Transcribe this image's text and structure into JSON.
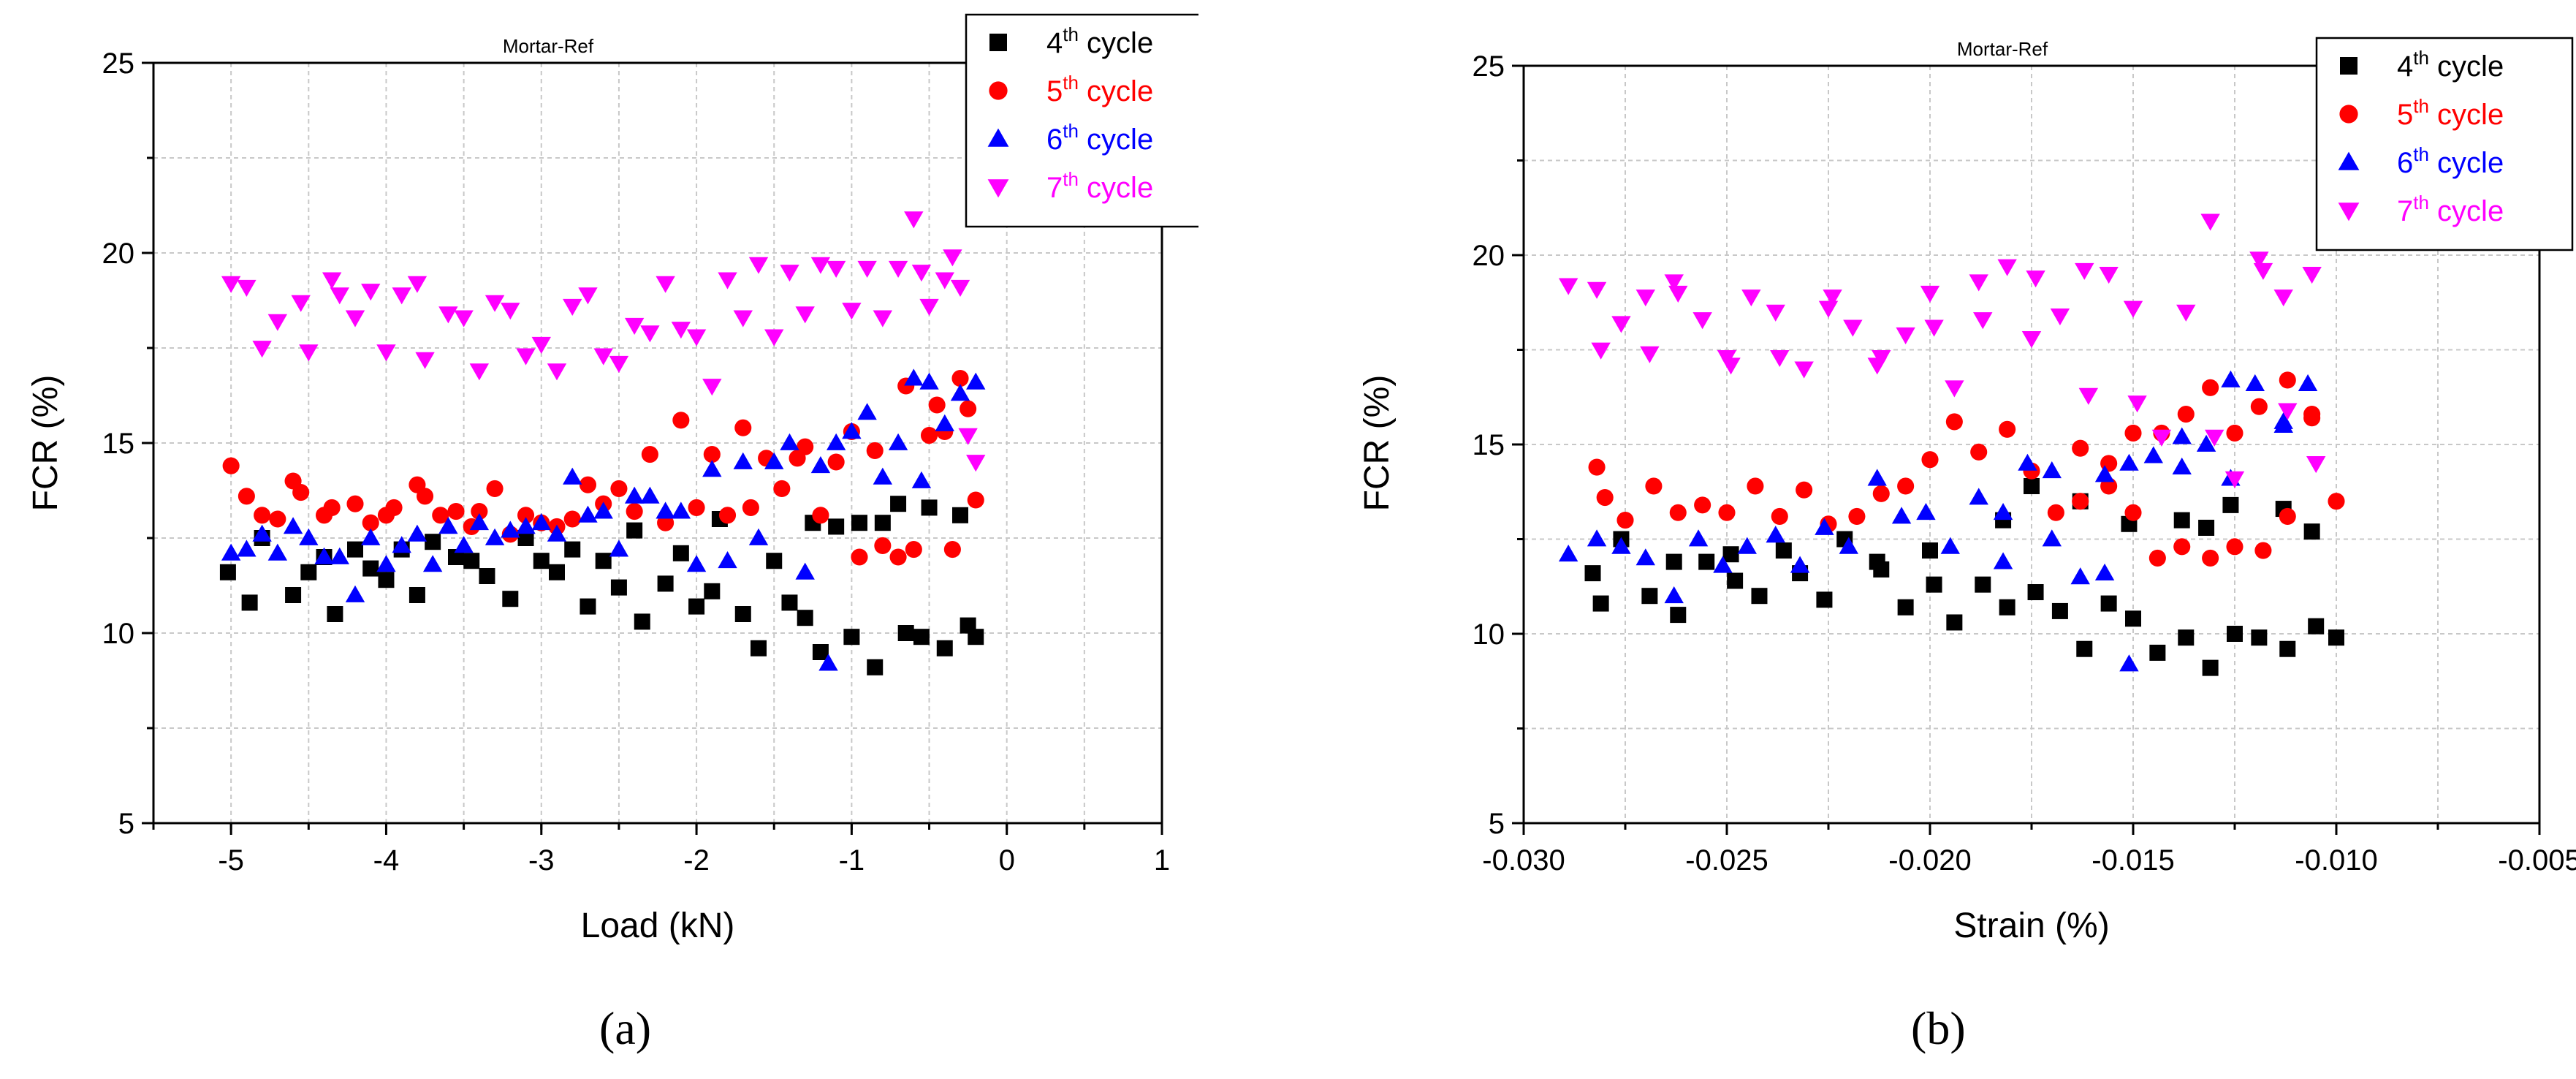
{
  "chart_data": [
    {
      "type": "scatter",
      "panel_label": "(a)",
      "title": "Mortar-Ref",
      "xlabel": "Load (kN)",
      "ylabel": "FCR (%)",
      "xlim": [
        -5.5,
        1
      ],
      "ylim": [
        5,
        25
      ],
      "xticks": [
        -5,
        -4,
        -3,
        -2,
        -1,
        0,
        1
      ],
      "xtick_labels": [
        "-5",
        "-4",
        "-3",
        "-2",
        "-1",
        "0",
        "1"
      ],
      "yticks": [
        5,
        10,
        15,
        20,
        25
      ],
      "ytick_labels": [
        "5",
        "10",
        "15",
        "20",
        "25"
      ],
      "legend_position": "top-right",
      "series": [
        {
          "name": "4th cycle",
          "name_base": "4",
          "name_sup": "th",
          "name_rest": " cycle",
          "marker": "square",
          "color": "#000000",
          "x": [
            -5.02,
            -4.88,
            -4.8,
            -4.6,
            -4.5,
            -4.4,
            -4.33,
            -4.2,
            -4.1,
            -4.0,
            -3.9,
            -3.8,
            -3.7,
            -3.55,
            -3.45,
            -3.35,
            -3.2,
            -3.1,
            -3.0,
            -2.9,
            -2.8,
            -2.7,
            -2.6,
            -2.5,
            -2.4,
            -2.35,
            -2.2,
            -2.1,
            -2.0,
            -1.9,
            -1.85,
            -1.7,
            -1.6,
            -1.5,
            -1.4,
            -1.3,
            -1.25,
            -1.2,
            -1.1,
            -1.0,
            -0.95,
            -0.85,
            -0.8,
            -0.7,
            -0.65,
            -0.55,
            -0.5,
            -0.4,
            -0.3,
            -0.25,
            -0.2
          ],
          "y": [
            11.6,
            10.8,
            12.5,
            11.0,
            11.6,
            12.0,
            10.5,
            12.2,
            11.7,
            11.4,
            12.2,
            11.0,
            12.4,
            12.0,
            11.9,
            11.5,
            10.9,
            12.5,
            11.9,
            11.6,
            12.2,
            10.7,
            11.9,
            11.2,
            12.7,
            10.3,
            11.3,
            12.1,
            10.7,
            11.1,
            13.0,
            10.5,
            9.6,
            11.9,
            10.8,
            10.4,
            12.9,
            9.5,
            12.8,
            9.9,
            12.9,
            9.1,
            12.9,
            13.4,
            10.0,
            9.9,
            13.3,
            9.6,
            13.1,
            10.2,
            9.9
          ]
        },
        {
          "name": "5th cycle",
          "name_base": "5",
          "name_sup": "th",
          "name_rest": " cycle",
          "marker": "circle",
          "color": "#ff0000",
          "x": [
            -5.0,
            -4.9,
            -4.8,
            -4.7,
            -4.6,
            -4.55,
            -4.4,
            -4.35,
            -4.2,
            -4.1,
            -4.0,
            -3.95,
            -3.8,
            -3.75,
            -3.65,
            -3.55,
            -3.45,
            -3.4,
            -3.3,
            -3.2,
            -3.1,
            -3.0,
            -2.9,
            -2.8,
            -2.7,
            -2.6,
            -2.5,
            -2.4,
            -2.3,
            -2.2,
            -2.1,
            -2.0,
            -1.9,
            -1.8,
            -1.7,
            -1.65,
            -1.55,
            -1.45,
            -1.35,
            -1.3,
            -1.2,
            -1.1,
            -1.0,
            -0.95,
            -0.85,
            -0.8,
            -0.7,
            -0.65,
            -0.6,
            -0.5,
            -0.45,
            -0.4,
            -0.35,
            -0.3,
            -0.25,
            -0.2
          ],
          "y": [
            14.4,
            13.6,
            13.1,
            13.0,
            14.0,
            13.7,
            13.1,
            13.3,
            13.4,
            12.9,
            13.1,
            13.3,
            13.9,
            13.6,
            13.1,
            13.2,
            12.8,
            13.2,
            13.8,
            12.6,
            13.1,
            12.9,
            12.8,
            13.0,
            13.9,
            13.4,
            13.8,
            13.2,
            14.7,
            12.9,
            15.6,
            13.3,
            14.7,
            13.1,
            15.4,
            13.3,
            14.6,
            13.8,
            14.6,
            14.9,
            13.1,
            14.5,
            15.3,
            12.0,
            14.8,
            12.3,
            12.0,
            16.5,
            12.2,
            15.2,
            16.0,
            15.3,
            12.2,
            16.7,
            15.9,
            13.5
          ]
        },
        {
          "name": "6th cycle",
          "name_base": "6",
          "name_sup": "th",
          "name_rest": " cycle",
          "marker": "triangle-up",
          "color": "#0000ff",
          "x": [
            -5.0,
            -4.9,
            -4.8,
            -4.7,
            -4.6,
            -4.5,
            -4.4,
            -4.3,
            -4.2,
            -4.1,
            -4.0,
            -3.9,
            -3.8,
            -3.7,
            -3.6,
            -3.5,
            -3.4,
            -3.3,
            -3.2,
            -3.1,
            -3.0,
            -2.9,
            -2.8,
            -2.7,
            -2.6,
            -2.5,
            -2.4,
            -2.3,
            -2.2,
            -2.1,
            -2.0,
            -1.9,
            -1.8,
            -1.7,
            -1.6,
            -1.5,
            -1.4,
            -1.3,
            -1.2,
            -1.15,
            -1.1,
            -1.0,
            -0.9,
            -0.8,
            -0.7,
            -0.6,
            -0.55,
            -0.5,
            -0.4,
            -0.3,
            -0.2
          ],
          "y": [
            12.1,
            12.2,
            12.6,
            12.1,
            12.8,
            12.5,
            12.0,
            12.0,
            11.0,
            12.5,
            11.8,
            12.3,
            12.6,
            11.8,
            12.8,
            12.3,
            12.9,
            12.5,
            12.7,
            12.8,
            12.9,
            12.6,
            14.1,
            13.1,
            13.2,
            12.2,
            13.6,
            13.6,
            13.2,
            13.2,
            11.8,
            14.3,
            11.9,
            14.5,
            12.5,
            14.5,
            15.0,
            11.6,
            14.4,
            9.2,
            15.0,
            15.3,
            15.8,
            14.1,
            15.0,
            16.7,
            14.0,
            16.6,
            15.5,
            16.3,
            16.6
          ]
        },
        {
          "name": "7th cycle",
          "name_base": "7",
          "name_sup": "th",
          "name_rest": " cycle",
          "marker": "triangle-down",
          "color": "#ff00ff",
          "x": [
            -5.0,
            -4.9,
            -4.8,
            -4.7,
            -4.55,
            -4.5,
            -4.35,
            -4.3,
            -4.2,
            -4.1,
            -4.0,
            -3.9,
            -3.8,
            -3.75,
            -3.6,
            -3.5,
            -3.4,
            -3.3,
            -3.2,
            -3.1,
            -3.0,
            -2.9,
            -2.8,
            -2.7,
            -2.6,
            -2.5,
            -2.4,
            -2.3,
            -2.2,
            -2.1,
            -2.0,
            -1.9,
            -1.8,
            -1.7,
            -1.6,
            -1.5,
            -1.4,
            -1.3,
            -1.2,
            -1.1,
            -1.0,
            -0.9,
            -0.8,
            -0.7,
            -0.6,
            -0.55,
            -0.5,
            -0.4,
            -0.35,
            -0.3,
            -0.25,
            -0.2
          ],
          "y": [
            19.2,
            19.1,
            17.5,
            18.2,
            18.7,
            17.4,
            19.3,
            18.9,
            18.3,
            19.0,
            17.4,
            18.9,
            19.2,
            17.2,
            18.4,
            18.3,
            16.9,
            18.7,
            18.5,
            17.3,
            17.6,
            16.9,
            18.6,
            18.9,
            17.3,
            17.1,
            18.1,
            17.9,
            19.2,
            18.0,
            17.8,
            16.5,
            19.3,
            18.3,
            19.7,
            17.8,
            19.5,
            18.4,
            19.7,
            19.6,
            18.5,
            19.6,
            18.3,
            19.6,
            20.9,
            19.5,
            18.6,
            19.3,
            19.9,
            19.1,
            15.2,
            14.5
          ]
        }
      ]
    },
    {
      "type": "scatter",
      "panel_label": "(b)",
      "title": "Mortar-Ref",
      "xlabel": "Strain (%)",
      "ylabel": "FCR (%)",
      "xlim": [
        -0.03,
        -0.005
      ],
      "ylim": [
        5,
        25
      ],
      "xticks": [
        -0.03,
        -0.025,
        -0.02,
        -0.015,
        -0.01,
        -0.005
      ],
      "xtick_labels": [
        "-0.030",
        "-0.025",
        "-0.020",
        "-0.015",
        "-0.010",
        "-0.005"
      ],
      "yticks": [
        5,
        10,
        15,
        20,
        25
      ],
      "ytick_labels": [
        "5",
        "10",
        "15",
        "20",
        "25"
      ],
      "legend_position": "top-right",
      "series": [
        {
          "name": "4th cycle",
          "name_base": "4",
          "name_sup": "th",
          "name_rest": " cycle",
          "marker": "square",
          "color": "#000000",
          "x": [
            -0.0283,
            -0.0281,
            -0.0276,
            -0.0269,
            -0.0263,
            -0.0262,
            -0.0255,
            -0.0249,
            -0.0248,
            -0.0242,
            -0.0236,
            -0.0232,
            -0.0226,
            -0.0221,
            -0.0213,
            -0.0212,
            -0.0206,
            -0.02,
            -0.0199,
            -0.0194,
            -0.0187,
            -0.0182,
            -0.0181,
            -0.0175,
            -0.0174,
            -0.0168,
            -0.0163,
            -0.0162,
            -0.0156,
            -0.0151,
            -0.015,
            -0.0144,
            -0.0138,
            -0.0137,
            -0.0132,
            -0.0131,
            -0.0126,
            -0.0125,
            -0.0119,
            -0.0113,
            -0.0112,
            -0.0106,
            -0.0105,
            -0.01
          ],
          "y": [
            11.6,
            10.8,
            12.5,
            11.0,
            11.9,
            10.5,
            11.9,
            12.1,
            11.4,
            11.0,
            12.2,
            11.6,
            10.9,
            12.5,
            11.9,
            11.7,
            10.7,
            12.2,
            11.3,
            10.3,
            11.3,
            13.0,
            10.7,
            13.9,
            11.1,
            10.6,
            13.5,
            9.6,
            10.8,
            12.9,
            10.4,
            9.5,
            13.0,
            9.9,
            12.8,
            9.1,
            13.4,
            10.0,
            9.9,
            13.3,
            9.6,
            12.7,
            10.2,
            9.9
          ]
        },
        {
          "name": "5th cycle",
          "name_base": "5",
          "name_sup": "th",
          "name_rest": " cycle",
          "marker": "circle",
          "color": "#ff0000",
          "x": [
            -0.0282,
            -0.028,
            -0.0275,
            -0.0268,
            -0.0262,
            -0.0256,
            -0.025,
            -0.0243,
            -0.0237,
            -0.0231,
            -0.0225,
            -0.0218,
            -0.0212,
            -0.0206,
            -0.02,
            -0.0194,
            -0.0188,
            -0.0181,
            -0.0175,
            -0.0169,
            -0.0163,
            -0.0156,
            -0.015,
            -0.0144,
            -0.0138,
            -0.0131,
            -0.0125,
            -0.0119,
            -0.0112,
            -0.0106,
            -0.01,
            -0.0163,
            -0.0156,
            -0.015,
            -0.0143,
            -0.0137,
            -0.0131,
            -0.0125,
            -0.0118,
            -0.0112,
            -0.0106
          ],
          "y": [
            14.4,
            13.6,
            13.0,
            13.9,
            13.2,
            13.4,
            13.2,
            13.9,
            13.1,
            13.8,
            12.9,
            13.1,
            13.7,
            13.9,
            14.6,
            15.6,
            14.8,
            15.4,
            14.3,
            13.2,
            14.9,
            14.5,
            15.3,
            12.0,
            12.3,
            16.5,
            15.3,
            16.0,
            16.7,
            15.8,
            13.5,
            13.5,
            13.9,
            13.2,
            15.3,
            15.8,
            12.0,
            12.3,
            12.2,
            13.1,
            15.7
          ]
        },
        {
          "name": "6th cycle",
          "name_base": "6",
          "name_sup": "th",
          "name_rest": " cycle",
          "marker": "triangle-up",
          "color": "#0000ff",
          "x": [
            -0.0289,
            -0.0282,
            -0.0276,
            -0.027,
            -0.0263,
            -0.0257,
            -0.0251,
            -0.0245,
            -0.0238,
            -0.0232,
            -0.0226,
            -0.022,
            -0.0213,
            -0.0207,
            -0.0201,
            -0.0195,
            -0.0188,
            -0.0182,
            -0.0176,
            -0.017,
            -0.0163,
            -0.0157,
            -0.0151,
            -0.0145,
            -0.0138,
            -0.0132,
            -0.0126,
            -0.012,
            -0.0113,
            -0.0107,
            -0.0182,
            -0.017,
            -0.0157,
            -0.0151,
            -0.0138,
            -0.0126,
            -0.0113
          ],
          "y": [
            12.1,
            12.5,
            12.3,
            12.0,
            11.0,
            12.5,
            11.8,
            12.3,
            12.6,
            11.8,
            12.8,
            12.3,
            14.1,
            13.1,
            13.2,
            12.3,
            13.6,
            13.2,
            14.5,
            14.3,
            11.5,
            11.6,
            14.5,
            14.7,
            14.4,
            15.0,
            16.7,
            16.6,
            15.6,
            16.6,
            11.9,
            12.5,
            14.2,
            9.2,
            15.2,
            14.1,
            15.5
          ]
        },
        {
          "name": "7th cycle",
          "name_base": "7",
          "name_sup": "th",
          "name_rest": " cycle",
          "marker": "triangle-down",
          "color": "#ff00ff",
          "x": [
            -0.0289,
            -0.0282,
            -0.0281,
            -0.0276,
            -0.027,
            -0.0269,
            -0.0263,
            -0.0262,
            -0.0256,
            -0.025,
            -0.0249,
            -0.0244,
            -0.0238,
            -0.0237,
            -0.0231,
            -0.0225,
            -0.0224,
            -0.0219,
            -0.0213,
            -0.0212,
            -0.0206,
            -0.02,
            -0.0199,
            -0.0194,
            -0.0188,
            -0.0187,
            -0.0181,
            -0.0175,
            -0.0174,
            -0.0168,
            -0.0162,
            -0.0161,
            -0.0156,
            -0.015,
            -0.0149,
            -0.0143,
            -0.0137,
            -0.0131,
            -0.013,
            -0.0125,
            -0.0119,
            -0.0118,
            -0.0113,
            -0.0112,
            -0.0106,
            -0.0105
          ],
          "y": [
            19.2,
            19.1,
            17.5,
            18.2,
            18.9,
            17.4,
            19.3,
            19.0,
            18.3,
            17.3,
            17.1,
            18.9,
            18.5,
            17.3,
            17.0,
            18.6,
            18.9,
            18.1,
            17.1,
            17.3,
            17.9,
            19.0,
            18.1,
            16.5,
            19.3,
            18.3,
            19.7,
            17.8,
            19.4,
            18.4,
            19.6,
            16.3,
            19.5,
            18.6,
            16.1,
            15.2,
            18.5,
            20.9,
            15.2,
            14.1,
            19.9,
            19.6,
            18.9,
            15.9,
            19.5,
            14.5
          ]
        }
      ]
    }
  ]
}
